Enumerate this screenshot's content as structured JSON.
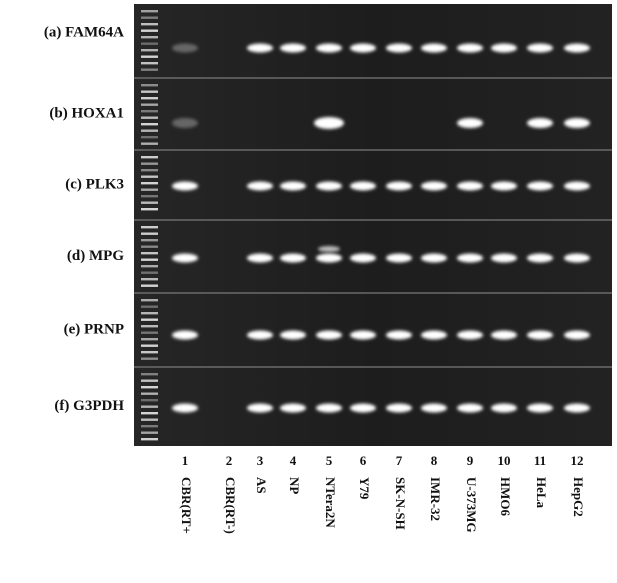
{
  "rows": [
    {
      "label": "(a) FAM64A"
    },
    {
      "label": "(b) HOXA1"
    },
    {
      "label": "(c) PLK3"
    },
    {
      "label": "(d) MPG"
    },
    {
      "label": "(e) PRNP"
    },
    {
      "label": "(f) G3PDH"
    }
  ],
  "lanes": [
    {
      "number": "1",
      "name": "CBR(RT+"
    },
    {
      "number": "2",
      "name": "CBR(RT-)"
    },
    {
      "number": "3",
      "name": "AS"
    },
    {
      "number": "4",
      "name": "NP"
    },
    {
      "number": "5",
      "name": "NTera2N"
    },
    {
      "number": "6",
      "name": "Y79"
    },
    {
      "number": "7",
      "name": "SK-N-SH"
    },
    {
      "number": "8",
      "name": "IMR-32"
    },
    {
      "number": "9",
      "name": "U-373MG"
    },
    {
      "number": "10",
      "name": "HMO6"
    },
    {
      "number": "11",
      "name": "HeLa"
    },
    {
      "number": "12",
      "name": "HepG2"
    }
  ]
}
